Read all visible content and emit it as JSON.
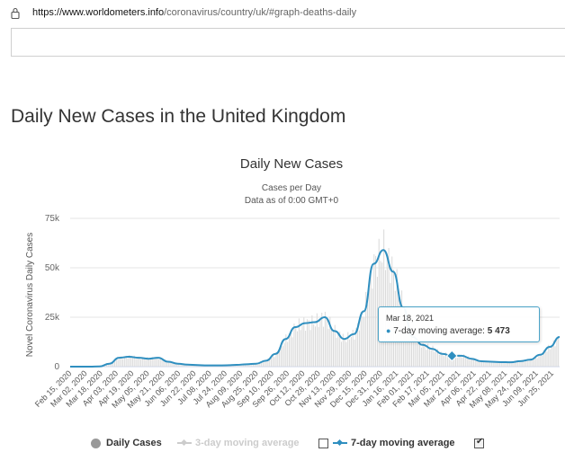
{
  "browser": {
    "url_host": "https://www.worldometers.info",
    "url_path": "/coronavirus/country/uk/#graph-deaths-daily"
  },
  "page": {
    "title": "Daily New Cases in the United Kingdom"
  },
  "chart": {
    "title": "Daily New Cases",
    "subtitle_line1": "Cases per Day",
    "subtitle_line2": "Data as of 0:00 GMT+0",
    "ylabel": "Novel Coronavirus Daily Cases"
  },
  "tooltip": {
    "date": "Mar 18, 2021",
    "series_label": "7-day moving average: ",
    "value": "5 473"
  },
  "legend": {
    "daily": "Daily Cases",
    "ma3": "3-day moving average",
    "ma7": "7-day moving average"
  },
  "colors": {
    "line": "#2f8fc0",
    "bars": "#d9d9d9",
    "grid": "#e6e6e6"
  },
  "chart_data": {
    "type": "line",
    "ylim": [
      0,
      75000
    ],
    "yticks": [
      "0",
      "25k",
      "50k",
      "75k"
    ],
    "ytick_values": [
      0,
      25000,
      50000,
      75000
    ],
    "xticks": [
      "Feb 15, 2020",
      "Mar 02, 2020",
      "Mar 18, 2020",
      "Apr 03, 2020",
      "Apr 19, 2020",
      "May 05, 2020",
      "May 21, 2020",
      "Jun 06, 2020",
      "Jun 22, 2020",
      "Jul 08, 2020",
      "Jul 24, 2020",
      "Aug 09, 2020",
      "Aug 25, 2020",
      "Sep 10, 2020",
      "Sep 26, 2020",
      "Oct 12, 2020",
      "Oct 28, 2020",
      "Nov 13, 2020",
      "Nov 29, 2020",
      "Dec 15, 2020",
      "Dec 31, 2020",
      "Jan 16, 2021",
      "Feb 01, 2021",
      "Feb 17, 2021",
      "Mar 05, 2021",
      "Mar 21, 2021",
      "Apr 06, 2021",
      "Apr 22, 2021",
      "May 08, 2021",
      "May 24, 2021",
      "Jun 09, 2021",
      "Jun 25, 2021"
    ],
    "series": [
      {
        "name": "7-day moving average",
        "values": [
          0,
          0,
          0,
          100,
          1500,
          4500,
          5000,
          4500,
          4000,
          4500,
          2500,
          1500,
          1000,
          800,
          600,
          600,
          700,
          900,
          1200,
          1500,
          3000,
          6500,
          14000,
          20000,
          22000,
          22500,
          25000,
          18000,
          14000,
          16500,
          28000,
          52000,
          59000,
          48000,
          30000,
          15000,
          11000,
          9000,
          6500,
          5473,
          5500,
          4000,
          2700,
          2500,
          2300,
          2200,
          2800,
          3500,
          6000,
          10000,
          15000
        ]
      }
    ],
    "tooltip_point": {
      "x": "Mar 18, 2021",
      "y": 5473
    }
  }
}
